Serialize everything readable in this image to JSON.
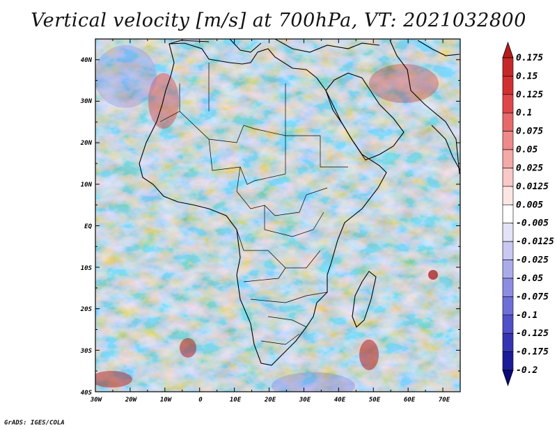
{
  "title": "Vertical velocity [m/s] at 700hPa, VT: 2021032800",
  "credit": "GrADS: IGES/COLA",
  "map": {
    "region": "Africa",
    "lon_range": [
      -30,
      75
    ],
    "lat_range": [
      -40,
      45
    ],
    "lat_labels": [
      "40N",
      "30N",
      "20N",
      "10N",
      "EQ",
      "10S",
      "20S",
      "30S",
      "40S"
    ],
    "lon_labels": [
      "30W",
      "20W",
      "10W",
      "0",
      "10E",
      "20E",
      "30E",
      "40E",
      "50E",
      "60E",
      "70E"
    ]
  },
  "colorbar": {
    "labels": [
      "0.175",
      "0.15",
      "0.125",
      "0.1",
      "0.075",
      "0.05",
      "0.025",
      "0.0125",
      "0.005",
      "-0.005",
      "-0.0125",
      "-0.025",
      "-0.05",
      "-0.075",
      "-0.1",
      "-0.125",
      "-0.175",
      "-0.2"
    ],
    "colors": [
      "#b71c1c",
      "#c62828",
      "#d32f2f",
      "#e0474b",
      "#e8696a",
      "#ef8a8a",
      "#f4aaa7",
      "#f8c9c6",
      "#fce6e4",
      "#ffffff",
      "#e3e3f8",
      "#c8c8f2",
      "#ababec",
      "#8d8de3",
      "#6f6fd8",
      "#5050c9",
      "#3535b4",
      "#1c1c99",
      "#0a0a7a"
    ]
  }
}
